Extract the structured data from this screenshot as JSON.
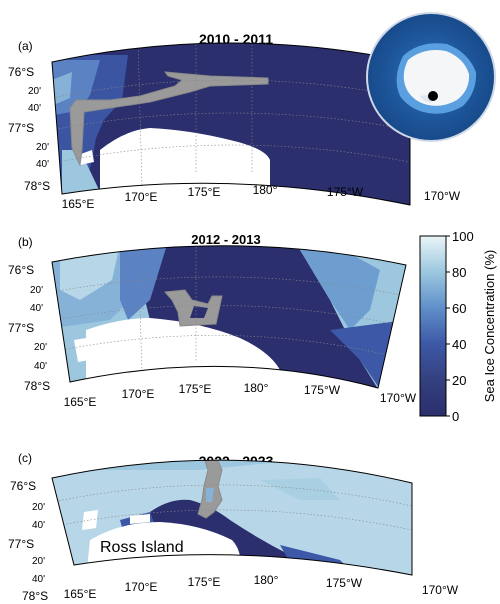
{
  "panels": [
    {
      "id": "a",
      "label": "(a)",
      "title": "2010 - 2011",
      "lat_labels": [
        "76°S",
        "20'",
        "40'",
        "77°S",
        "20'",
        "40'",
        "78°S"
      ],
      "lon_labels": [
        "165°E",
        "170°E",
        "175°E",
        "180°",
        "175°W",
        "170°W"
      ]
    },
    {
      "id": "b",
      "label": "(b)",
      "title": "2012 - 2013",
      "lat_labels": [
        "76°S",
        "20'",
        "40'",
        "77°S",
        "20'",
        "40'",
        "78°S"
      ],
      "lon_labels": [
        "165°E",
        "170°E",
        "175°E",
        "180°",
        "175°W",
        "170°W"
      ]
    },
    {
      "id": "c",
      "label": "(c)",
      "title": "2022 - 2023",
      "lat_labels": [
        "76°S",
        "20'",
        "40'",
        "77°S",
        "20'",
        "40'",
        "78°S"
      ],
      "lon_labels": [
        "165°E",
        "170°E",
        "175°E",
        "180°",
        "175°W",
        "170°W"
      ],
      "place_label": "Ross Island"
    }
  ],
  "colorbar": {
    "label": "Sea Ice Concentration (%)",
    "ticks": [
      "100",
      "80",
      "60",
      "40",
      "20",
      "0"
    ],
    "range": [
      0,
      100
    ],
    "colors": [
      "#2b2f6d",
      "#3a4a9a",
      "#5b82c2",
      "#86b2d8",
      "#b7d7e8",
      "#eaf5f8"
    ]
  },
  "colors": {
    "low": "#2b2f6d",
    "mid": "#5b82c2",
    "high": "#b9dcea",
    "land": "#ffffff",
    "track": "#9a9a9a",
    "ocean_globe": "#1f5ea8"
  }
}
